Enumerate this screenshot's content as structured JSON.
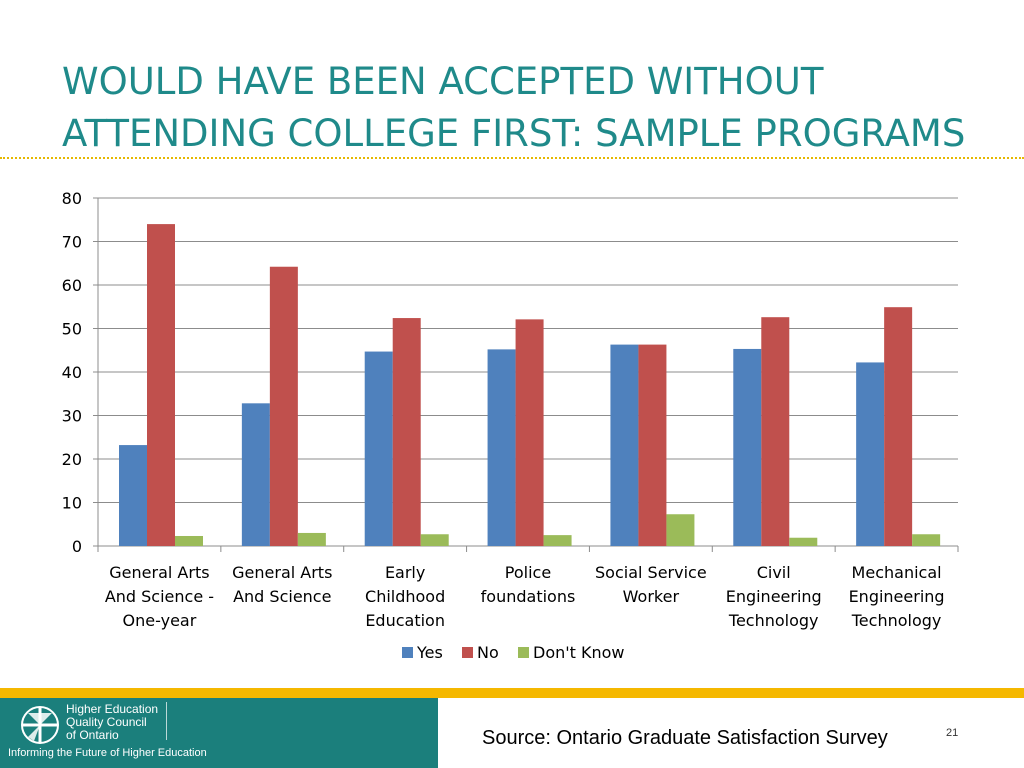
{
  "slide": {
    "title_lines": [
      "WOULD HAVE BEEN ACCEPTED WITHOUT",
      "ATTENDING COLLEGE FIRST: SAMPLE PROGRAMS"
    ],
    "source": "Source: Ontario Graduate Satisfaction Survey",
    "page_number": "21",
    "accent_color": "#1f8a8a",
    "rule_color": "#e6b800"
  },
  "footer": {
    "logo_lines": [
      "Higher Education",
      "Quality Council",
      "of Ontario"
    ],
    "tagline": "Informing the Future of Higher Education",
    "band_color": "#f5b800",
    "panel_color": "#1b7f7c"
  },
  "chart_data": {
    "type": "bar",
    "title": "",
    "xlabel": "",
    "ylabel": "",
    "ylim": [
      0,
      80
    ],
    "yticks": [
      0,
      10,
      20,
      30,
      40,
      50,
      60,
      70,
      80
    ],
    "grid": true,
    "legend_position": "bottom",
    "categories": [
      [
        "General Arts",
        "And Science -",
        "One-year"
      ],
      [
        "General Arts",
        "And Science"
      ],
      [
        "Early",
        "Childhood",
        "Education"
      ],
      [
        "Police",
        "foundations"
      ],
      [
        "Social Service",
        "Worker"
      ],
      [
        "Civil",
        "Engineering",
        "Technology"
      ],
      [
        "Mechanical",
        "Engineering",
        "Technology"
      ]
    ],
    "series": [
      {
        "name": "Yes",
        "color": "#4f81bd",
        "values": [
          23.2,
          32.8,
          44.7,
          45.2,
          46.3,
          45.3,
          42.2
        ]
      },
      {
        "name": "No",
        "color": "#c0504d",
        "values": [
          74.0,
          64.2,
          52.4,
          52.1,
          46.3,
          52.6,
          54.9
        ]
      },
      {
        "name": "Don't Know",
        "color": "#9bbb59",
        "values": [
          2.3,
          3.0,
          2.7,
          2.5,
          7.3,
          1.9,
          2.7
        ]
      }
    ]
  }
}
